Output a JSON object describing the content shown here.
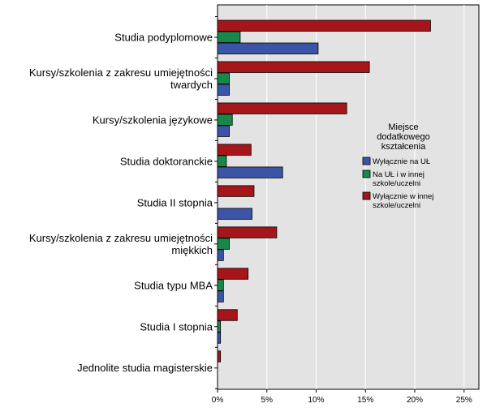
{
  "chart_data": {
    "type": "bar",
    "orientation": "horizontal",
    "categories": [
      [
        "Studia podyplomowe"
      ],
      [
        "Kursy/szkolenia z zakresu umiejętności",
        "twardych"
      ],
      [
        "Kursy/szkolenia językowe"
      ],
      [
        "Studia doktoranckie"
      ],
      [
        "Studia II stopnia"
      ],
      [
        "Kursy/szkolenia z zakresu umiejętności",
        "miękkich"
      ],
      [
        "Studia typu MBA"
      ],
      [
        "Studia I stopnia"
      ],
      [
        "Jednolite studia magisterskie"
      ]
    ],
    "series": [
      {
        "name": "Wyłącznie w innej szkole/uczelni",
        "name_lines": [
          "Wyłącznie w innej",
          "szkole/uczelni"
        ],
        "color": "#a4161a",
        "values": [
          21.6,
          15.4,
          13.1,
          3.4,
          3.7,
          6.0,
          3.1,
          2.0,
          0.3
        ]
      },
      {
        "name": "Na UŁ i w innej szkole/uczelni",
        "name_lines": [
          "Na UŁ i w innej",
          "szkole/uczelni"
        ],
        "color": "#17884a",
        "values": [
          2.3,
          1.2,
          1.5,
          0.9,
          0.0,
          1.2,
          0.6,
          0.3,
          0.0
        ]
      },
      {
        "name": "Wyłącznie na UŁ",
        "name_lines": [
          "Wyłącznie na UŁ"
        ],
        "color": "#3a55a6",
        "values": [
          10.2,
          1.2,
          1.2,
          6.6,
          3.5,
          0.6,
          0.6,
          0.3,
          0.0
        ]
      }
    ],
    "xlabel": "",
    "ylabel": "",
    "xlim": [
      0,
      26.5
    ],
    "xticks": [
      0,
      5,
      10,
      15,
      20,
      25
    ],
    "xtick_labels": [
      "0%",
      "5%",
      "10%",
      "15%",
      "20%",
      "25%"
    ],
    "legend": {
      "title_lines": [
        "Miejsce",
        "dodatkowego",
        "kształcenia"
      ],
      "order": [
        2,
        1,
        0
      ],
      "position": "right"
    },
    "plot_background": "#e3e3e3",
    "grid": true
  }
}
